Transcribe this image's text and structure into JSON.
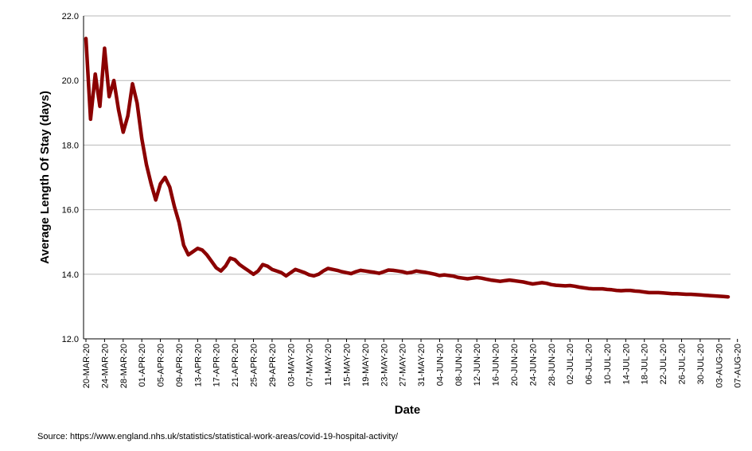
{
  "source_note": "Source: https://www.england.nhs.uk/statistics/statistical-work-areas/covid-19-hospital-activity/",
  "chart_data": {
    "type": "line",
    "title": "",
    "xlabel": "Date",
    "ylabel": "Average Length Of Stay (days)",
    "ylim": [
      12.0,
      22.0
    ],
    "yticks": [
      "12.0",
      "14.0",
      "16.0",
      "18.0",
      "20.0",
      "22.0"
    ],
    "grid": "horizontal",
    "line_color": "#8b0000",
    "x_tick_labels": [
      "20-MAR-20",
      "24-MAR-20",
      "28-MAR-20",
      "01-APR-20",
      "05-APR-20",
      "09-APR-20",
      "13-APR-20",
      "17-APR-20",
      "21-APR-20",
      "25-APR-20",
      "29-APR-20",
      "03-MAY-20",
      "07-MAY-20",
      "11-MAY-20",
      "15-MAY-20",
      "19-MAY-20",
      "23-MAY-20",
      "27-MAY-20",
      "31-MAY-20",
      "04-JUN-20",
      "08-JUN-20",
      "12-JUN-20",
      "16-JUN-20",
      "20-JUN-20",
      "24-JUN-20",
      "28-JUN-20",
      "02-JUL-20",
      "06-JUL-20",
      "10-JUL-20",
      "14-JUL-20",
      "18-JUL-20",
      "22-JUL-20",
      "26-JUL-20",
      "30-JUL-20",
      "03-AUG-20",
      "07-AUG-20"
    ],
    "x_start": "2020-03-20",
    "series": [
      {
        "values": [
          21.3,
          18.8,
          20.2,
          19.2,
          21.0,
          19.5,
          20.0,
          19.1,
          18.4,
          18.9,
          19.9,
          19.3,
          18.2,
          17.4,
          16.8,
          16.3,
          16.8,
          17.0,
          16.7,
          16.1,
          15.6,
          14.9,
          14.6,
          14.7,
          14.8,
          14.75,
          14.6,
          14.4,
          14.2,
          14.1,
          14.25,
          14.5,
          14.45,
          14.3,
          14.2,
          14.1,
          14.0,
          14.1,
          14.3,
          14.25,
          14.15,
          14.1,
          14.05,
          13.95,
          14.05,
          14.15,
          14.1,
          14.05,
          13.98,
          13.95,
          14.0,
          14.1,
          14.18,
          14.15,
          14.12,
          14.08,
          14.05,
          14.02,
          14.08,
          14.12,
          14.1,
          14.08,
          14.06,
          14.03,
          14.08,
          14.13,
          14.12,
          14.1,
          14.08,
          14.04,
          14.06,
          14.1,
          14.08,
          14.06,
          14.03,
          14.0,
          13.96,
          13.98,
          13.96,
          13.94,
          13.9,
          13.88,
          13.86,
          13.88,
          13.9,
          13.88,
          13.85,
          13.82,
          13.8,
          13.78,
          13.8,
          13.82,
          13.8,
          13.78,
          13.76,
          13.73,
          13.7,
          13.72,
          13.74,
          13.72,
          13.68,
          13.66,
          13.65,
          13.64,
          13.65,
          13.63,
          13.6,
          13.58,
          13.56,
          13.55,
          13.55,
          13.55,
          13.53,
          13.52,
          13.5,
          13.49,
          13.5,
          13.5,
          13.48,
          13.47,
          13.45,
          13.43,
          13.43,
          13.43,
          13.42,
          13.41,
          13.4,
          13.4,
          13.39,
          13.38,
          13.38,
          13.37,
          13.36,
          13.35,
          13.34,
          13.33,
          13.32,
          13.31,
          13.3
        ]
      }
    ]
  }
}
